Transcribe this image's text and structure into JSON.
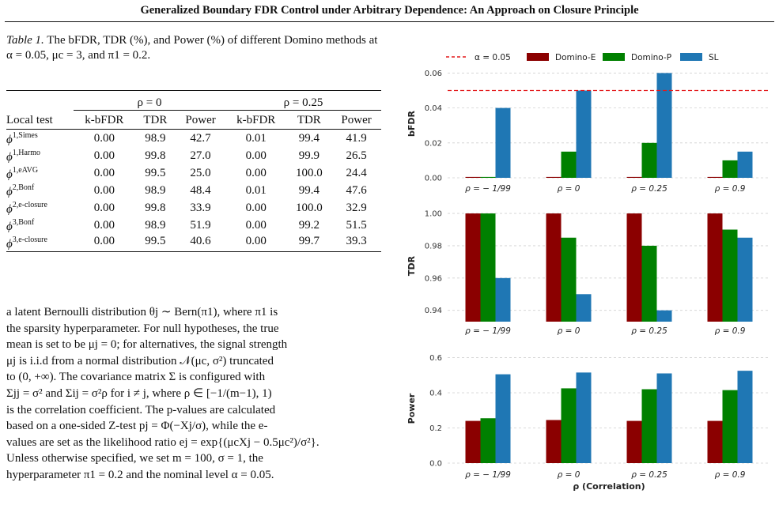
{
  "header": {
    "title": "Generalized Boundary FDR Control under Arbitrary Dependence: An Approach on Closure Principle"
  },
  "caption": {
    "label": "Table 1.",
    "text": "The bFDR, TDR (%), and Power (%) of different Domino methods at α = 0.05, μc = 3, and π1 = 0.2."
  },
  "table": {
    "group_headers": [
      "ρ = 0",
      "ρ = 0.25"
    ],
    "columns": [
      "Local test",
      "k-bFDR",
      "TDR",
      "Power",
      "k-bFDR",
      "TDR",
      "Power"
    ],
    "rows": [
      {
        "base": "ϕ",
        "sup": "1,Simes",
        "vals": [
          "0.00",
          "98.9",
          "42.7",
          "0.01",
          "99.4",
          "41.9"
        ]
      },
      {
        "base": "ϕ",
        "sup": "1,Harmo",
        "vals": [
          "0.00",
          "99.8",
          "27.0",
          "0.00",
          "99.9",
          "26.5"
        ]
      },
      {
        "base": "ϕ",
        "sup": "1,eAVG",
        "vals": [
          "0.00",
          "99.5",
          "25.0",
          "0.00",
          "100.0",
          "24.4"
        ]
      },
      {
        "base": "ϕ",
        "sup": "2,Bonf",
        "vals": [
          "0.00",
          "98.9",
          "48.4",
          "0.01",
          "99.4",
          "47.6"
        ]
      },
      {
        "base": "ϕ",
        "sup": "2,e-closure",
        "vals": [
          "0.00",
          "99.8",
          "33.9",
          "0.00",
          "100.0",
          "32.9"
        ]
      },
      {
        "base": "ϕ",
        "sup": "3,Bonf",
        "vals": [
          "0.00",
          "98.9",
          "51.9",
          "0.00",
          "99.2",
          "51.5"
        ]
      },
      {
        "base": "ϕ",
        "sup": "3,e-closure",
        "vals": [
          "0.00",
          "99.5",
          "40.6",
          "0.00",
          "99.7",
          "39.3"
        ]
      }
    ]
  },
  "body_text": [
    "a latent Bernoulli distribution θj ∼ Bern(π1), where π1 is",
    "the sparsity hyperparameter. For null hypotheses, the true",
    "mean is set to be μj = 0; for alternatives, the signal strength",
    "μj is i.i.d from a normal distribution 𝒩(μc, σ²) truncated",
    "to (0, +∞). The covariance matrix Σ is configured with",
    "Σjj = σ² and Σij = σ²ρ for i ≠ j, where ρ ∈ [−1/(m−1), 1)",
    "is the correlation coefficient. The p-values are calculated",
    "based on a one-sided Z-test pj = Φ(−Xj/σ), while the e-",
    "values are set as the likelihood ratio ej = exp{(μcXj − 0.5μc²)/σ²}.",
    "Unless otherwise specified, we set m = 100, σ = 1, the",
    "hyperparameter π1 = 0.2 and the nominal level α = 0.05."
  ],
  "chart_data": {
    "type": "bar",
    "categories": [
      "ρ = − 1/99",
      "ρ = 0",
      "ρ = 0.25",
      "ρ = 0.9"
    ],
    "xlabel": "ρ (Correlation)",
    "legend": [
      "α = 0.05",
      "Domino-E",
      "Domino-P",
      "SL"
    ],
    "legend_placement": "top",
    "colors": {
      "Domino-E": "#8b0000",
      "Domino-P": "#008000",
      "SL": "#1f77b4",
      "alpha_line": "#e31a1c"
    },
    "panels": [
      {
        "ylabel": "bFDR",
        "ylim": [
          0,
          0.062
        ],
        "ticks": [
          "0.00",
          "0.02",
          "0.04",
          "0.06"
        ],
        "tick_values": [
          0,
          0.02,
          0.04,
          0.06
        ],
        "reference_line": 0.05,
        "series": [
          {
            "name": "Domino-E",
            "values": [
              0.0005,
              0.0005,
              0.0005,
              0.0005
            ]
          },
          {
            "name": "Domino-P",
            "values": [
              0.0005,
              0.015,
              0.02,
              0.01
            ]
          },
          {
            "name": "SL",
            "values": [
              0.04,
              0.05,
              0.06,
              0.015
            ]
          }
        ]
      },
      {
        "ylabel": "TDR",
        "ylim": [
          0.933,
          1.002
        ],
        "ticks": [
          "0.94",
          "0.96",
          "0.98",
          "1.00"
        ],
        "tick_values": [
          0.94,
          0.96,
          0.98,
          1.0
        ],
        "series": [
          {
            "name": "Domino-E",
            "values": [
              1.0,
              1.0,
              1.0,
              1.0
            ]
          },
          {
            "name": "Domino-P",
            "values": [
              1.0,
              0.985,
              0.98,
              0.99
            ]
          },
          {
            "name": "SL",
            "values": [
              0.96,
              0.95,
              0.94,
              0.985
            ]
          }
        ]
      },
      {
        "ylabel": "Power",
        "ylim": [
          0,
          0.62
        ],
        "ticks": [
          "0.0",
          "0.2",
          "0.4",
          "0.6"
        ],
        "tick_values": [
          0,
          0.2,
          0.4,
          0.6
        ],
        "series": [
          {
            "name": "Domino-E",
            "values": [
              0.24,
              0.245,
              0.24,
              0.24
            ]
          },
          {
            "name": "Domino-P",
            "values": [
              0.255,
              0.425,
              0.42,
              0.415
            ]
          },
          {
            "name": "SL",
            "values": [
              0.505,
              0.515,
              0.51,
              0.525
            ]
          }
        ]
      }
    ]
  }
}
